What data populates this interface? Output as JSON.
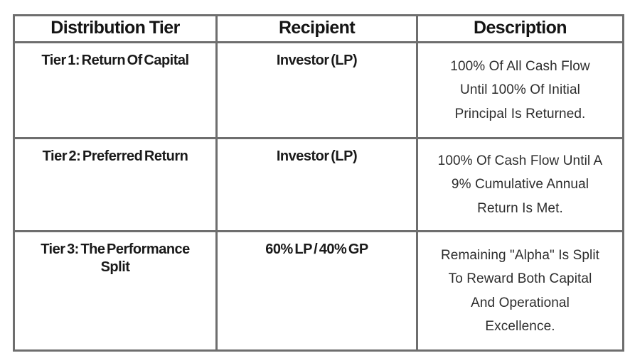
{
  "page": {
    "background_color": "#ffffff"
  },
  "table": {
    "border_color": "#6e6e6e",
    "header_text_color": "#141414",
    "body_text_color": "#1a1a1a",
    "description_text_color": "#2d2d2d",
    "columns": [
      "Distribution Tier",
      "Recipient",
      "Description"
    ],
    "rows": [
      {
        "tier": "Tier 1: Return Of Capital",
        "tier_lines": [
          "Tier 1: Return Of Capital",
          ""
        ],
        "recipient": "Investor (LP)",
        "description": "100% Of All Cash Flow Until 100% Of Initial Principal Is Returned.",
        "description_lines": [
          "100% Of All Cash Flow",
          "Until 100% Of Initial",
          "Principal Is Returned.",
          ""
        ]
      },
      {
        "tier": "Tier 2: Preferred Return",
        "tier_lines": [
          "Tier 2: Preferred Return",
          ""
        ],
        "recipient": "Investor (LP)",
        "description": "100% Of Cash Flow Until A 9% Cumulative Annual Return Is Met.",
        "description_lines": [
          "100% Of Cash Flow Until A",
          "9% Cumulative Annual",
          "Return Is Met.",
          ""
        ]
      },
      {
        "tier": "Tier 3: The Performance Split",
        "tier_lines": [
          "Tier 3: The Performance",
          "Split"
        ],
        "recipient": "60% LP / 40% GP",
        "description": "Remaining \"Alpha\" Is Split To Reward Both Capital And Operational Excellence.",
        "description_lines": [
          "Remaining \"Alpha\" Is Split",
          "To Reward Both Capital",
          "And Operational",
          "Excellence."
        ]
      }
    ]
  }
}
